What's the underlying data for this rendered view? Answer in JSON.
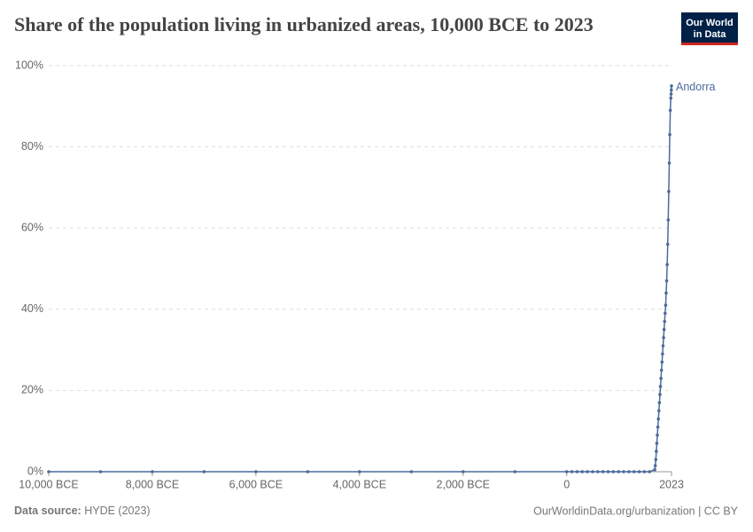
{
  "chart_data": {
    "type": "line",
    "title": "Share of the population living in urbanized areas, 10,000 BCE to 2023",
    "logo": [
      "Our World",
      "in Data"
    ],
    "source_label": "Data source:",
    "source": "HYDE (2023)",
    "credit": "OurWorldinData.org/urbanization | CC BY",
    "x": [
      -10000,
      -9000,
      -8000,
      -7000,
      -6000,
      -5000,
      -4000,
      -3000,
      -2000,
      -1000,
      0,
      100,
      200,
      300,
      400,
      500,
      600,
      700,
      800,
      900,
      1000,
      1100,
      1200,
      1300,
      1400,
      1500,
      1600,
      1700,
      1710,
      1720,
      1730,
      1740,
      1750,
      1760,
      1770,
      1780,
      1790,
      1800,
      1810,
      1820,
      1830,
      1840,
      1850,
      1860,
      1870,
      1880,
      1890,
      1900,
      1910,
      1920,
      1930,
      1940,
      1950,
      1960,
      1970,
      1980,
      1990,
      2000,
      2010,
      2015,
      2020,
      2023
    ],
    "series": [
      {
        "name": "Andorra",
        "color": "#4c6a9c",
        "values": [
          0,
          0,
          0,
          0,
          0,
          0,
          0,
          0,
          0,
          0,
          0,
          0,
          0,
          0,
          0,
          0,
          0,
          0,
          0,
          0,
          0,
          0,
          0,
          0,
          0,
          0,
          0,
          0.5,
          1.5,
          3,
          5,
          7,
          9,
          11,
          13,
          15,
          17,
          19,
          21,
          23,
          25,
          27,
          29,
          31,
          33,
          35,
          37,
          39,
          41,
          44,
          47,
          51,
          56,
          62,
          69,
          76,
          83,
          89,
          92,
          93,
          94,
          95
        ]
      }
    ],
    "xlim": [
      -10000,
      2023
    ],
    "xticks": [
      {
        "value": -10000,
        "label": "10,000 BCE"
      },
      {
        "value": -8000,
        "label": "8,000 BCE"
      },
      {
        "value": -6000,
        "label": "6,000 BCE"
      },
      {
        "value": -4000,
        "label": "4,000 BCE"
      },
      {
        "value": -2000,
        "label": "2,000 BCE"
      },
      0,
      2023
    ],
    "ylim": [
      0,
      100
    ],
    "yticks": [
      {
        "value": 0,
        "label": "0%"
      },
      {
        "value": 20,
        "label": "20%"
      },
      {
        "value": 40,
        "label": "40%"
      },
      {
        "value": 60,
        "label": "60%"
      },
      {
        "value": 80,
        "label": "80%"
      },
      {
        "value": 100,
        "label": "100%"
      }
    ],
    "grid": true
  }
}
